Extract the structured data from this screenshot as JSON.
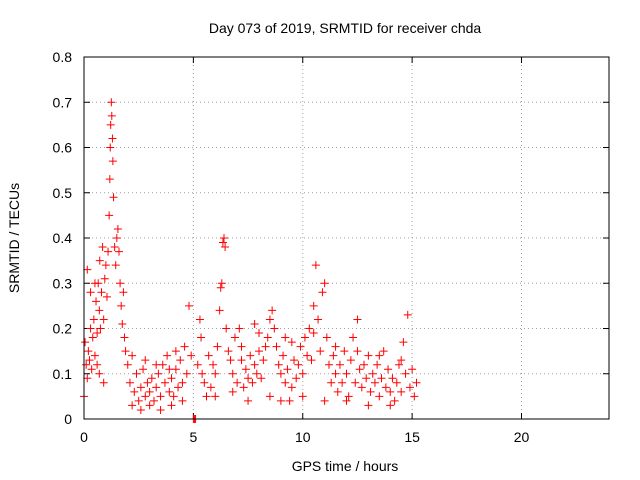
{
  "chart_data": {
    "type": "scatter",
    "title": "Day 073 of 2019, SRMTID for receiver chda",
    "xlabel": "GPS time / hours",
    "ylabel": "SRMTID / TECUs",
    "xlim": [
      0,
      24
    ],
    "ylim": [
      0,
      0.8
    ],
    "xticks": [
      0,
      5,
      10,
      15,
      20
    ],
    "yticks": [
      0,
      0.1,
      0.2,
      0.3,
      0.4,
      0.5,
      0.6,
      0.7,
      0.8
    ],
    "xtick_labels": [
      "0",
      "5",
      "10",
      "15",
      "20"
    ],
    "ytick_labels": [
      "0",
      "0.1",
      "0.2",
      "0.3",
      "0.4",
      "0.5",
      "0.6",
      "0.7",
      "0.8"
    ],
    "grid": true,
    "marker": "+",
    "colors": {
      "series": "#ff0000",
      "grid": "#a0a0a0",
      "axis": "#000000"
    },
    "series": [
      {
        "name": "SRMTID",
        "points": [
          [
            0.0,
            0.05
          ],
          [
            0.05,
            0.17
          ],
          [
            0.1,
            0.12
          ],
          [
            0.15,
            0.09
          ],
          [
            0.2,
            0.15
          ],
          [
            0.25,
            0.13
          ],
          [
            0.3,
            0.2
          ],
          [
            0.35,
            0.11
          ],
          [
            0.4,
            0.18
          ],
          [
            0.45,
            0.22
          ],
          [
            0.5,
            0.14
          ],
          [
            0.55,
            0.26
          ],
          [
            0.6,
            0.19
          ],
          [
            0.65,
            0.3
          ],
          [
            0.7,
            0.24
          ],
          [
            0.72,
            0.35
          ],
          [
            0.75,
            0.2
          ],
          [
            0.8,
            0.28
          ],
          [
            0.85,
            0.38
          ],
          [
            0.9,
            0.22
          ],
          [
            0.95,
            0.31
          ],
          [
            1.0,
            0.34
          ],
          [
            1.05,
            0.27
          ],
          [
            1.1,
            0.37
          ],
          [
            1.15,
            0.45
          ],
          [
            1.18,
            0.53
          ],
          [
            1.2,
            0.6
          ],
          [
            1.22,
            0.65
          ],
          [
            1.25,
            0.7
          ],
          [
            1.27,
            0.67
          ],
          [
            1.3,
            0.62
          ],
          [
            1.32,
            0.57
          ],
          [
            1.35,
            0.49
          ],
          [
            1.4,
            0.38
          ],
          [
            1.45,
            0.34
          ],
          [
            1.5,
            0.4
          ],
          [
            1.55,
            0.42
          ],
          [
            1.6,
            0.37
          ],
          [
            1.65,
            0.3
          ],
          [
            1.7,
            0.25
          ],
          [
            1.75,
            0.21
          ],
          [
            1.8,
            0.28
          ],
          [
            1.85,
            0.18
          ],
          [
            1.9,
            0.15
          ],
          [
            0.5,
            0.3
          ],
          [
            0.7,
            0.1
          ],
          [
            0.9,
            0.08
          ],
          [
            0.3,
            0.28
          ],
          [
            0.15,
            0.33
          ],
          [
            0.6,
            0.12
          ],
          [
            2.0,
            0.12
          ],
          [
            2.1,
            0.08
          ],
          [
            2.2,
            0.14
          ],
          [
            2.3,
            0.06
          ],
          [
            2.4,
            0.1
          ],
          [
            2.5,
            0.04
          ],
          [
            2.6,
            0.07
          ],
          [
            2.7,
            0.11
          ],
          [
            2.8,
            0.05
          ],
          [
            2.9,
            0.08
          ],
          [
            3.0,
            0.06
          ],
          [
            3.1,
            0.09
          ],
          [
            3.2,
            0.04
          ],
          [
            3.3,
            0.07
          ],
          [
            3.4,
            0.1
          ],
          [
            3.5,
            0.05
          ],
          [
            3.6,
            0.12
          ],
          [
            3.7,
            0.08
          ],
          [
            3.8,
            0.14
          ],
          [
            3.9,
            0.06
          ],
          [
            4.0,
            0.09
          ],
          [
            4.1,
            0.05
          ],
          [
            4.2,
            0.11
          ],
          [
            4.3,
            0.07
          ],
          [
            4.4,
            0.13
          ],
          [
            4.5,
            0.08
          ],
          [
            4.6,
            0.16
          ],
          [
            4.7,
            0.1
          ],
          [
            4.8,
            0.25
          ],
          [
            4.9,
            0.14
          ],
          [
            2.2,
            0.03
          ],
          [
            2.6,
            0.02
          ],
          [
            3.0,
            0.03
          ],
          [
            3.5,
            0.02
          ],
          [
            4.0,
            0.03
          ],
          [
            4.5,
            0.04
          ],
          [
            2.8,
            0.13
          ],
          [
            3.3,
            0.12
          ],
          [
            4.2,
            0.15
          ],
          [
            3.9,
            0.11
          ],
          [
            5.0,
            0.0
          ],
          [
            5.05,
            0.0
          ],
          [
            5.1,
            0.0
          ],
          [
            5.2,
            0.12
          ],
          [
            5.3,
            0.22
          ],
          [
            5.35,
            0.18
          ],
          [
            5.4,
            0.1
          ],
          [
            5.5,
            0.08
          ],
          [
            5.6,
            0.05
          ],
          [
            5.7,
            0.14
          ],
          [
            5.8,
            0.07
          ],
          [
            5.9,
            0.12
          ],
          [
            6.0,
            0.1
          ],
          [
            6.1,
            0.16
          ],
          [
            6.2,
            0.24
          ],
          [
            6.25,
            0.29
          ],
          [
            6.3,
            0.3
          ],
          [
            6.35,
            0.39
          ],
          [
            6.4,
            0.4
          ],
          [
            6.45,
            0.38
          ],
          [
            6.5,
            0.2
          ],
          [
            6.6,
            0.15
          ],
          [
            6.7,
            0.13
          ],
          [
            6.8,
            0.1
          ],
          [
            6.9,
            0.18
          ],
          [
            7.0,
            0.08
          ],
          [
            7.1,
            0.2
          ],
          [
            7.2,
            0.13
          ],
          [
            7.3,
            0.07
          ],
          [
            7.4,
            0.11
          ],
          [
            7.5,
            0.09
          ],
          [
            7.6,
            0.14
          ],
          [
            7.7,
            0.08
          ],
          [
            7.8,
            0.12
          ],
          [
            7.9,
            0.1
          ],
          [
            8.0,
            0.15
          ],
          [
            8.1,
            0.09
          ],
          [
            8.2,
            0.13
          ],
          [
            8.3,
            0.16
          ],
          [
            8.4,
            0.18
          ],
          [
            8.5,
            0.22
          ],
          [
            8.6,
            0.24
          ],
          [
            8.7,
            0.2
          ],
          [
            8.8,
            0.16
          ],
          [
            8.9,
            0.12
          ],
          [
            9.0,
            0.1
          ],
          [
            9.1,
            0.14
          ],
          [
            9.2,
            0.08
          ],
          [
            9.3,
            0.11
          ],
          [
            9.4,
            0.04
          ],
          [
            9.5,
            0.07
          ],
          [
            9.6,
            0.13
          ],
          [
            9.7,
            0.09
          ],
          [
            9.8,
            0.12
          ],
          [
            9.9,
            0.16
          ],
          [
            10.0,
            0.1
          ],
          [
            10.1,
            0.18
          ],
          [
            10.2,
            0.14
          ],
          [
            10.3,
            0.2
          ],
          [
            10.4,
            0.13
          ],
          [
            10.5,
            0.25
          ],
          [
            10.6,
            0.34
          ],
          [
            10.7,
            0.22
          ],
          [
            10.8,
            0.15
          ],
          [
            10.9,
            0.28
          ],
          [
            11.0,
            0.3
          ],
          [
            11.1,
            0.18
          ],
          [
            11.2,
            0.12
          ],
          [
            11.3,
            0.08
          ],
          [
            11.4,
            0.14
          ],
          [
            11.5,
            0.1
          ],
          [
            11.6,
            0.06
          ],
          [
            11.7,
            0.12
          ],
          [
            11.8,
            0.08
          ],
          [
            11.9,
            0.15
          ],
          [
            12.0,
            0.1
          ],
          [
            12.1,
            0.05
          ],
          [
            12.2,
            0.13
          ],
          [
            12.3,
            0.18
          ],
          [
            12.4,
            0.08
          ],
          [
            12.5,
            0.22
          ],
          [
            12.6,
            0.11
          ],
          [
            12.7,
            0.07
          ],
          [
            12.8,
            0.12
          ],
          [
            12.9,
            0.09
          ],
          [
            13.0,
            0.14
          ],
          [
            13.1,
            0.06
          ],
          [
            13.2,
            0.1
          ],
          [
            13.3,
            0.08
          ],
          [
            13.4,
            0.12
          ],
          [
            13.5,
            0.05
          ],
          [
            13.6,
            0.09
          ],
          [
            13.7,
            0.15
          ],
          [
            13.8,
            0.07
          ],
          [
            13.9,
            0.11
          ],
          [
            14.0,
            0.06
          ],
          [
            14.1,
            0.09
          ],
          [
            14.2,
            0.04
          ],
          [
            14.3,
            0.08
          ],
          [
            14.4,
            0.12
          ],
          [
            14.5,
            0.06
          ],
          [
            14.6,
            0.17
          ],
          [
            14.7,
            0.1
          ],
          [
            14.8,
            0.23
          ],
          [
            14.9,
            0.07
          ],
          [
            15.0,
            0.11
          ],
          [
            15.1,
            0.05
          ],
          [
            15.2,
            0.08
          ],
          [
            6.0,
            0.05
          ],
          [
            6.8,
            0.06
          ],
          [
            7.5,
            0.04
          ],
          [
            8.5,
            0.05
          ],
          [
            9.0,
            0.04
          ],
          [
            10.0,
            0.05
          ],
          [
            11.0,
            0.04
          ],
          [
            12.0,
            0.04
          ],
          [
            13.0,
            0.03
          ],
          [
            14.0,
            0.03
          ],
          [
            7.2,
            0.16
          ],
          [
            8.0,
            0.19
          ],
          [
            9.5,
            0.17
          ],
          [
            10.5,
            0.19
          ],
          [
            11.5,
            0.16
          ],
          [
            12.5,
            0.15
          ],
          [
            13.5,
            0.14
          ],
          [
            14.5,
            0.13
          ],
          [
            7.8,
            0.21
          ],
          [
            9.2,
            0.18
          ]
        ]
      }
    ]
  }
}
